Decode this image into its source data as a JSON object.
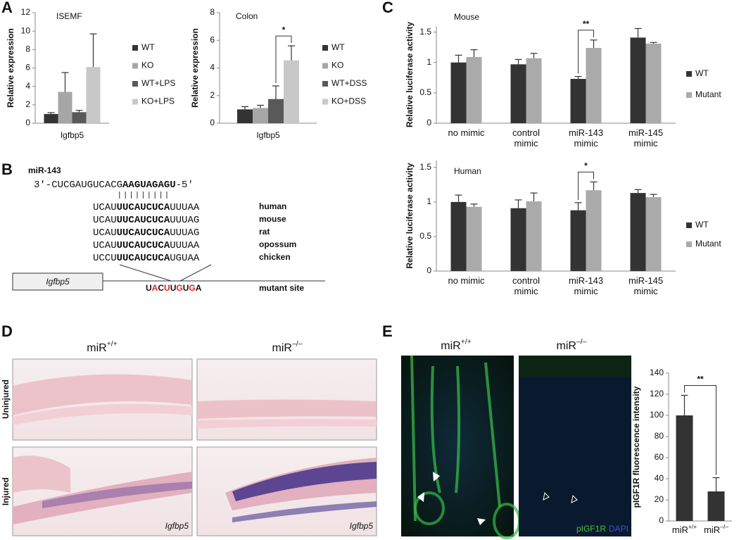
{
  "panel_labels": [
    "A",
    "B",
    "C",
    "D",
    "E"
  ],
  "chart_data": [
    {
      "type": "bar",
      "title": "ISEMF",
      "ylabel": "Relative expression",
      "categories": [
        "Igfbp5"
      ],
      "series": [
        {
          "name": "WT",
          "color": "#333333",
          "values": [
            1.0
          ],
          "errors": [
            0.15
          ]
        },
        {
          "name": "KO",
          "color": "#a6a6a6",
          "values": [
            3.4
          ],
          "errors": [
            2.1
          ]
        },
        {
          "name": "WT+LPS",
          "color": "#595959",
          "values": [
            1.2
          ],
          "errors": [
            0.2
          ]
        },
        {
          "name": "KO+LPS",
          "color": "#c8c8c8",
          "values": [
            6.1
          ],
          "errors": [
            3.6
          ]
        }
      ],
      "ylim": [
        0,
        12
      ],
      "yticks": [
        0,
        2,
        4,
        6,
        8,
        10,
        12
      ]
    },
    {
      "type": "bar",
      "title": "Colon",
      "ylabel": "Relative expression",
      "categories": [
        "Igfbp5"
      ],
      "series": [
        {
          "name": "WT",
          "color": "#333333",
          "values": [
            1.0
          ],
          "errors": [
            0.2
          ]
        },
        {
          "name": "KO",
          "color": "#a6a6a6",
          "values": [
            1.1
          ],
          "errors": [
            0.2
          ]
        },
        {
          "name": "WT+DSS",
          "color": "#595959",
          "values": [
            1.75
          ],
          "errors": [
            0.95
          ]
        },
        {
          "name": "KO+DSS",
          "color": "#c8c8c8",
          "values": [
            4.55
          ],
          "errors": [
            1.05
          ]
        }
      ],
      "ylim": [
        0,
        8
      ],
      "yticks": [
        0,
        2,
        4,
        6,
        8
      ],
      "significance": "*"
    },
    {
      "type": "bar",
      "title": "Mouse",
      "ylabel": "Relative luciferase activity",
      "categories": [
        "no mimic",
        "control mimic",
        "miR-143 mimic",
        "miR-145 mimic"
      ],
      "series": [
        {
          "name": "WT",
          "color": "#333333",
          "values": [
            1.0,
            0.97,
            0.73,
            1.41
          ],
          "errors": [
            0.12,
            0.08,
            0.04,
            0.15
          ]
        },
        {
          "name": "Mutant",
          "color": "#aaaaaa",
          "values": [
            1.09,
            1.07,
            1.24,
            1.31
          ],
          "errors": [
            0.12,
            0.08,
            0.13,
            0.02
          ]
        }
      ],
      "ylim": [
        0,
        1.6
      ],
      "yticks": [
        0,
        0.5,
        1,
        1.5
      ],
      "significance": "**"
    },
    {
      "type": "bar",
      "title": "Human",
      "ylabel": "Relative luciferase activity",
      "categories": [
        "no mimic",
        "control mimic",
        "miR-143 mimic",
        "miR-145 mimic"
      ],
      "series": [
        {
          "name": "WT",
          "color": "#333333",
          "values": [
            1.0,
            0.91,
            0.88,
            1.13
          ],
          "errors": [
            0.1,
            0.12,
            0.11,
            0.05
          ]
        },
        {
          "name": "Mutant",
          "color": "#aaaaaa",
          "values": [
            0.93,
            1.01,
            1.17,
            1.07
          ],
          "errors": [
            0.04,
            0.12,
            0.12,
            0.04
          ]
        }
      ],
      "ylim": [
        0,
        1.6
      ],
      "yticks": [
        0,
        0.5,
        1,
        1.5
      ],
      "significance": "*"
    },
    {
      "type": "bar",
      "ylabel": "pIGF1R fluorescence intensity",
      "categories": [
        {
          "base": "miR",
          "sup": "+/+"
        },
        {
          "base": "miR",
          "sup": "–/–"
        }
      ],
      "color": "#333333",
      "values": [
        100,
        28
      ],
      "errors": [
        19,
        13
      ],
      "ylim": [
        0,
        140
      ],
      "yticks": [
        0,
        20,
        40,
        60,
        80,
        100,
        120,
        140
      ],
      "significance": "**"
    }
  ],
  "sequence_panel": {
    "mirna_name": "miR-143",
    "mirna_seq": {
      "start": "3′-CUCGAUGUCACG",
      "seed": "AAGUAGAGU",
      "end": "-5′"
    },
    "rows": [
      {
        "prefix": "UCAU",
        "site": "UUCAUCUCA",
        "suffix": "UUUAA",
        "species": "human"
      },
      {
        "prefix": "UCAU",
        "site": "UUCAUCUCA",
        "suffix": "UUUAG",
        "species": "mouse"
      },
      {
        "prefix": "UCAU",
        "site": "UUCAUCUCA",
        "suffix": "UUUAG",
        "species": "rat"
      },
      {
        "prefix": "UCAU",
        "site": "UUCAUCUCA",
        "suffix": "UUUAA",
        "species": "opossum"
      },
      {
        "prefix": "UCCU",
        "site": "UUCAUCUCA",
        "suffix": "UGUAA",
        "species": "chicken"
      }
    ],
    "gene": "Igfbp5",
    "mutant_site": {
      "letters": [
        {
          "text": "U"
        },
        {
          "text": "A",
          "color": "#e8221b"
        },
        {
          "text": "C"
        },
        {
          "text": "U",
          "color": "#e8221b"
        },
        {
          "text": "U"
        },
        {
          "text": "G",
          "color": "#e8221b"
        },
        {
          "text": "U"
        },
        {
          "text": "G",
          "color": "#e8221b"
        },
        {
          "text": "A"
        }
      ],
      "label": "mutant site"
    }
  },
  "histology_panel": {
    "columns": [
      {
        "base": "miR",
        "sup": "+/+"
      },
      {
        "base": "miR",
        "sup": "–/–"
      }
    ],
    "rows": [
      "Uninjured",
      "Injured"
    ],
    "stain_labels": [
      "Igfbp5",
      "Igfbp5"
    ]
  },
  "immunofluorescence_panel": {
    "columns": [
      {
        "base": "miR",
        "sup": "+/+"
      },
      {
        "base": "miR",
        "sup": "–/–"
      }
    ],
    "marker": "pIGF1R",
    "marker_color": "#3fc43f",
    "counterstain": "DAPI",
    "counterstain_color": "#3a4ee0"
  }
}
